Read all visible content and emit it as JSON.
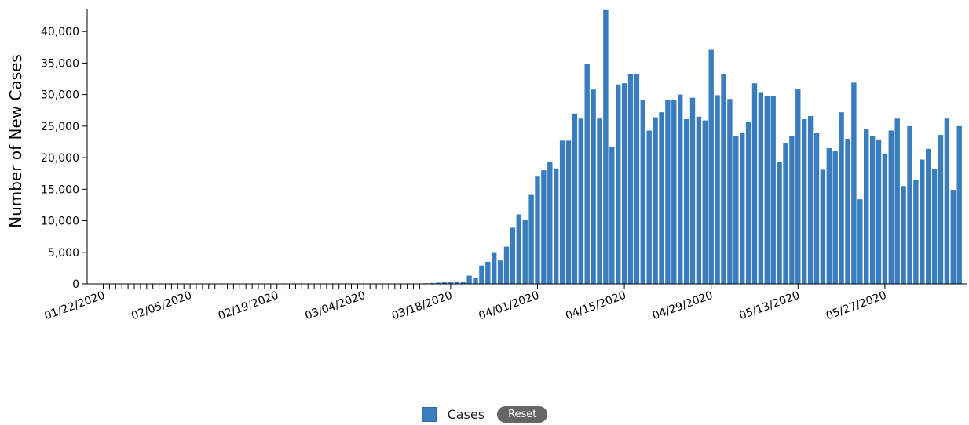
{
  "chart_data": {
    "type": "bar",
    "ylabel": "Number of New Cases",
    "xlabel": "",
    "ylim": [
      0,
      43500
    ],
    "y_ticks": [
      0,
      5000,
      10000,
      15000,
      20000,
      25000,
      30000,
      35000,
      40000
    ],
    "y_tick_labels": [
      "0",
      "5,000",
      "10,000",
      "15,000",
      "20,000",
      "25,000",
      "30,000",
      "35,000",
      "40,000"
    ],
    "x_tick_labels": [
      "01/22/2020",
      "02/05/2020",
      "02/19/2020",
      "03/04/2020",
      "03/18/2020",
      "04/01/2020",
      "04/15/2020",
      "04/29/2020",
      "05/13/2020",
      "05/27/2020"
    ],
    "x_label_every": 14,
    "color": "#3a7dbf",
    "series": [
      {
        "name": "Cases",
        "start_date": "01/22/2020",
        "values": [
          0,
          0,
          0,
          0,
          0,
          0,
          0,
          0,
          0,
          0,
          0,
          0,
          0,
          0,
          0,
          0,
          0,
          0,
          0,
          0,
          0,
          0,
          0,
          0,
          0,
          0,
          0,
          0,
          0,
          0,
          0,
          0,
          0,
          0,
          0,
          0,
          0,
          0,
          0,
          0,
          0,
          0,
          0,
          0,
          0,
          0,
          0,
          0,
          0,
          0,
          0,
          0,
          100,
          150,
          200,
          250,
          300,
          400,
          350,
          1300,
          900,
          2900,
          3500,
          4900,
          3700,
          5900,
          8900,
          11000,
          10200,
          14100,
          17000,
          18000,
          19400,
          18300,
          22700,
          22700,
          27000,
          26200,
          34900,
          30800,
          26200,
          43400,
          21700,
          31600,
          31800,
          33300,
          33300,
          29200,
          24300,
          26400,
          27200,
          29200,
          29100,
          30000,
          26100,
          29500,
          26500,
          25900,
          37100,
          29900,
          33200,
          29300,
          23400,
          24000,
          25600,
          31800,
          30400,
          29800,
          29800,
          19300,
          22300,
          23400,
          30900,
          26100,
          26600,
          23900,
          18100,
          21500,
          21000,
          27200,
          23000,
          31900,
          13400,
          24500,
          23400,
          22900,
          20600,
          24300,
          26200,
          15500,
          25000,
          16500,
          19700,
          21400,
          18200,
          23600,
          26200,
          14900,
          25000
        ]
      }
    ]
  },
  "legend": {
    "items": [
      {
        "label": "Cases",
        "color": "#3a7dbf"
      }
    ],
    "reset_label": "Reset"
  }
}
